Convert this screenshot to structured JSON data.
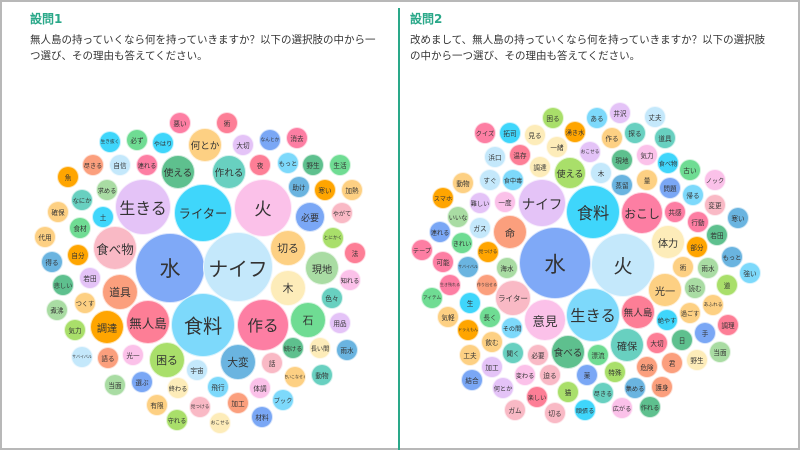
{
  "panels": [
    {
      "title": "設問1",
      "question": "無人島の持っていくなら何を持っていきますか？以下の選択肢の中から一つ選び、その理由も答えてください。",
      "bubbles": [
        {
          "t": "水",
          "c": "#7fa9f7"
        },
        {
          "t": "ナイフ",
          "c": "#c4e8fb"
        },
        {
          "t": "ライター",
          "c": "#3fd6fb"
        },
        {
          "t": "生きる",
          "c": "#e4c3f7"
        },
        {
          "t": "火",
          "c": "#fbc1e9"
        },
        {
          "t": "食料",
          "c": "#7dd9fb"
        },
        {
          "t": "作る",
          "c": "#fd7ea3"
        },
        {
          "t": "無人島",
          "c": "#fd7e96"
        },
        {
          "t": "食べ物",
          "c": "#f9b9c5"
        },
        {
          "t": "道具",
          "c": "#fb9f7d"
        },
        {
          "t": "調達",
          "c": "#ffa500"
        },
        {
          "t": "困る",
          "c": "#a9df6a"
        },
        {
          "t": "大変",
          "c": "#6ab4e0"
        },
        {
          "t": "石",
          "c": "#6fdc93"
        },
        {
          "t": "現地",
          "c": "#a9dca3"
        },
        {
          "t": "木",
          "c": "#fdecb9"
        },
        {
          "t": "切る",
          "c": "#fdd083"
        },
        {
          "t": "必要",
          "c": "#7aa7f5"
        },
        {
          "t": "使える",
          "c": "#5ec08e"
        },
        {
          "t": "作れる",
          "c": "#68d0c0"
        },
        {
          "t": "何とか",
          "c": "#fdd083"
        },
        {
          "t": "悪い",
          "c": "#fd7ea3"
        },
        {
          "t": "術",
          "c": "#fd7e96"
        },
        {
          "t": "生き抜く",
          "c": "#3fd6fb"
        },
        {
          "t": "必ず",
          "c": "#6fdc93"
        },
        {
          "t": "やはり",
          "c": "#3fd6fb"
        },
        {
          "t": "大切",
          "c": "#e4c3f7"
        },
        {
          "t": "なんとか",
          "c": "#7aa7f5"
        },
        {
          "t": "消去",
          "c": "#fd7ea3"
        },
        {
          "t": "尽きる",
          "c": "#fb9f7d"
        },
        {
          "t": "自信",
          "c": "#c4e8fb"
        },
        {
          "t": "連れる",
          "c": "#fd7ea3"
        },
        {
          "t": "夜",
          "c": "#fd7e96"
        },
        {
          "t": "もっと",
          "c": "#7dd9fb"
        },
        {
          "t": "野生",
          "c": "#5ec08e"
        },
        {
          "t": "生活",
          "c": "#6fdc93"
        },
        {
          "t": "魚",
          "c": "#ffa500"
        },
        {
          "t": "求める",
          "c": "#a9dca3"
        },
        {
          "t": "助け",
          "c": "#6ab4e0"
        },
        {
          "t": "寒い",
          "c": "#ffa500"
        },
        {
          "t": "加熱",
          "c": "#fdd083"
        },
        {
          "t": "なにか",
          "c": "#68d0c0"
        },
        {
          "t": "確保",
          "c": "#fdd083"
        },
        {
          "t": "土",
          "c": "#3fd6fb"
        },
        {
          "t": "やがて",
          "c": "#f9b9c5"
        },
        {
          "t": "食材",
          "c": "#6fdc93"
        },
        {
          "t": "代用",
          "c": "#fdd083"
        },
        {
          "t": "とにかく",
          "c": "#a9df6a"
        },
        {
          "t": "自分",
          "c": "#ffa500"
        },
        {
          "t": "法",
          "c": "#fd7e96"
        },
        {
          "t": "得る",
          "c": "#6ab4e0"
        },
        {
          "t": "若田",
          "c": "#e4c3f7"
        },
        {
          "t": "知れる",
          "c": "#fbc1e9"
        },
        {
          "t": "悲しい",
          "c": "#5ec08e"
        },
        {
          "t": "つくす",
          "c": "#fdd083"
        },
        {
          "t": "色々",
          "c": "#68d0c0"
        },
        {
          "t": "煮沸",
          "c": "#a9dca3"
        },
        {
          "t": "気力",
          "c": "#a9df6a"
        },
        {
          "t": "用品",
          "c": "#e4c3f7"
        },
        {
          "t": "続ける",
          "c": "#5ec08e"
        },
        {
          "t": "長い間",
          "c": "#fdecb9"
        },
        {
          "t": "雨水",
          "c": "#6ab4e0"
        },
        {
          "t": "サバイバル",
          "c": "#c4e8fb"
        },
        {
          "t": "語る",
          "c": "#fb9f7d"
        },
        {
          "t": "光一",
          "c": "#fbc1e9"
        },
        {
          "t": "宇宙",
          "c": "#c4e8fb"
        },
        {
          "t": "話",
          "c": "#f9b9c5"
        },
        {
          "t": "使いこなせる",
          "c": "#fdd083"
        },
        {
          "t": "動物",
          "c": "#68d0c0"
        },
        {
          "t": "当面",
          "c": "#a9dca3"
        },
        {
          "t": "選ぶ",
          "c": "#7aa7f5"
        },
        {
          "t": "終わる",
          "c": "#fdecb9"
        },
        {
          "t": "飛行",
          "c": "#7dd9fb"
        },
        {
          "t": "体調",
          "c": "#fbc1e9"
        },
        {
          "t": "ブック",
          "c": "#7dd9fb"
        },
        {
          "t": "有限",
          "c": "#fdd083"
        },
        {
          "t": "見つける",
          "c": "#f9b9c5"
        },
        {
          "t": "加工",
          "c": "#fb9f7d"
        },
        {
          "t": "材料",
          "c": "#7aa7f5"
        },
        {
          "t": "守れる",
          "c": "#a9df6a"
        },
        {
          "t": "おこせる",
          "c": "#fdecb9"
        }
      ]
    },
    {
      "title": "設問2",
      "question": "改めまして、無人島の持っていくなら何を持っていきますか？以下の選択肢の中から一つ選び、その理由も答えてください。",
      "bubbles": [
        {
          "t": "水",
          "c": "#7fa9f7"
        },
        {
          "t": "火",
          "c": "#c4e8fb"
        },
        {
          "t": "生きる",
          "c": "#7dd9fb"
        },
        {
          "t": "食料",
          "c": "#3fd6fb"
        },
        {
          "t": "ナイフ",
          "c": "#e4c3f7"
        },
        {
          "t": "おこし",
          "c": "#fd7ea3"
        },
        {
          "t": "体力",
          "c": "#fdecb9"
        },
        {
          "t": "命",
          "c": "#fb9f7d"
        },
        {
          "t": "使える",
          "c": "#a9df6a"
        },
        {
          "t": "意見",
          "c": "#fbc1e9"
        },
        {
          "t": "無人島",
          "c": "#fd7e96"
        },
        {
          "t": "光一",
          "c": "#fdd083"
        },
        {
          "t": "確保",
          "c": "#68d0c0"
        },
        {
          "t": "食べる",
          "c": "#5ec08e"
        },
        {
          "t": "ライター",
          "c": "#f9b9c5"
        },
        {
          "t": "クイズ",
          "c": "#fd7ea3"
        },
        {
          "t": "拓司",
          "c": "#3fd6fb"
        },
        {
          "t": "困る",
          "c": "#a9df6a"
        },
        {
          "t": "見る",
          "c": "#fdecb9"
        },
        {
          "t": "湧き水",
          "c": "#ffa500"
        },
        {
          "t": "ある",
          "c": "#7dd9fb"
        },
        {
          "t": "井沢",
          "c": "#e4c3f7"
        },
        {
          "t": "丈夫",
          "c": "#c4e8fb"
        },
        {
          "t": "浜口",
          "c": "#c4e8fb"
        },
        {
          "t": "温存",
          "c": "#fd7e96"
        },
        {
          "t": "一緒",
          "c": "#fdecb9"
        },
        {
          "t": "おこせる",
          "c": "#e4c3f7"
        },
        {
          "t": "作る",
          "c": "#fdd083"
        },
        {
          "t": "探る",
          "c": "#68d0c0"
        },
        {
          "t": "道具",
          "c": "#68d0c0"
        },
        {
          "t": "動物",
          "c": "#fdd083"
        },
        {
          "t": "すぐ",
          "c": "#c4e8fb"
        },
        {
          "t": "食中毒",
          "c": "#7dd9fb"
        },
        {
          "t": "調達",
          "c": "#fdecb9"
        },
        {
          "t": "木",
          "c": "#c4e8fb"
        },
        {
          "t": "現地",
          "c": "#5ec08e"
        },
        {
          "t": "気力",
          "c": "#fbc1e9"
        },
        {
          "t": "食べ物",
          "c": "#3fd6fb"
        },
        {
          "t": "古い",
          "c": "#6fdc93"
        },
        {
          "t": "蒸留",
          "c": "#6ab4e0"
        },
        {
          "t": "量",
          "c": "#fdd083"
        },
        {
          "t": "問題",
          "c": "#7aa7f5"
        },
        {
          "t": "ノック",
          "c": "#fbc1e9"
        },
        {
          "t": "スマホ",
          "c": "#ffa500"
        },
        {
          "t": "難しい",
          "c": "#e4c3f7"
        },
        {
          "t": "一度",
          "c": "#fbc1e9"
        },
        {
          "t": "帰る",
          "c": "#7dd9fb"
        },
        {
          "t": "共感",
          "c": "#fd7ea3"
        },
        {
          "t": "変更",
          "c": "#f9b9c5"
        },
        {
          "t": "寒い",
          "c": "#6ab4e0"
        },
        {
          "t": "いいな",
          "c": "#a9dca3"
        },
        {
          "t": "ガス",
          "c": "#c4e8fb"
        },
        {
          "t": "行動",
          "c": "#fd7ea3"
        },
        {
          "t": "連れる",
          "c": "#7aa7f5"
        },
        {
          "t": "きれい",
          "c": "#6fdc93"
        },
        {
          "t": "若田",
          "c": "#5ec08e"
        },
        {
          "t": "テープ",
          "c": "#fd7ea3"
        },
        {
          "t": "見つける",
          "c": "#ffa500"
        },
        {
          "t": "部分",
          "c": "#ffa500"
        },
        {
          "t": "もっと",
          "c": "#6ab4e0"
        },
        {
          "t": "可能",
          "c": "#fd7ea3"
        },
        {
          "t": "サバイバル",
          "c": "#6ab4e0"
        },
        {
          "t": "海水",
          "c": "#a9dca3"
        },
        {
          "t": "術",
          "c": "#fdd083"
        },
        {
          "t": "雨水",
          "c": "#a9dca3"
        },
        {
          "t": "強い",
          "c": "#7dd9fb"
        },
        {
          "t": "生き残れる",
          "c": "#fd7ea3"
        },
        {
          "t": "作り出せる",
          "c": "#fb9f7d"
        },
        {
          "t": "読む",
          "c": "#a9dca3"
        },
        {
          "t": "道",
          "c": "#a9df6a"
        },
        {
          "t": "アイテム",
          "c": "#6fdc93"
        },
        {
          "t": "生",
          "c": "#3fd6fb"
        },
        {
          "t": "あふれる",
          "c": "#fdd083"
        },
        {
          "t": "過ごす",
          "c": "#fdd083"
        },
        {
          "t": "気軽",
          "c": "#fdd083"
        },
        {
          "t": "長く",
          "c": "#6fdc93"
        },
        {
          "t": "絶やす",
          "c": "#3fd6fb"
        },
        {
          "t": "手",
          "c": "#7aa7f5"
        },
        {
          "t": "調理",
          "c": "#fd7e96"
        },
        {
          "t": "ドラえもん",
          "c": "#ffa500"
        },
        {
          "t": "その間",
          "c": "#7dd9fb"
        },
        {
          "t": "大切",
          "c": "#fd7e96"
        },
        {
          "t": "日",
          "c": "#5ec08e"
        },
        {
          "t": "当面",
          "c": "#a9dca3"
        },
        {
          "t": "飲む",
          "c": "#fdd083"
        },
        {
          "t": "工夫",
          "c": "#fdd083"
        },
        {
          "t": "聞く",
          "c": "#68d0c0"
        },
        {
          "t": "必要",
          "c": "#f9b9c5"
        },
        {
          "t": "漂流",
          "c": "#6fdc93"
        },
        {
          "t": "危険",
          "c": "#fb9f7d"
        },
        {
          "t": "君",
          "c": "#fb9f7d"
        },
        {
          "t": "野生",
          "c": "#fdecb9"
        },
        {
          "t": "加工",
          "c": "#e4c3f7"
        },
        {
          "t": "結合",
          "c": "#7aa7f5"
        },
        {
          "t": "変わる",
          "c": "#fbc1e9"
        },
        {
          "t": "迫る",
          "c": "#f9b9c5"
        },
        {
          "t": "薬",
          "c": "#7aa7f5"
        },
        {
          "t": "特殊",
          "c": "#a9df6a"
        },
        {
          "t": "何とか",
          "c": "#e4c3f7"
        },
        {
          "t": "集める",
          "c": "#6ab4e0"
        },
        {
          "t": "護身",
          "c": "#fb9f7d"
        },
        {
          "t": "猫",
          "c": "#a9df6a"
        },
        {
          "t": "尽きる",
          "c": "#68d0c0"
        },
        {
          "t": "楽しい",
          "c": "#fd7e96"
        },
        {
          "t": "ガム",
          "c": "#f9b9c5"
        },
        {
          "t": "切る",
          "c": "#f9b9c5"
        },
        {
          "t": "頑張る",
          "c": "#3fd6fb"
        },
        {
          "t": "広がる",
          "c": "#fbc1e9"
        },
        {
          "t": "作れる",
          "c": "#5ec08e"
        }
      ]
    }
  ]
}
